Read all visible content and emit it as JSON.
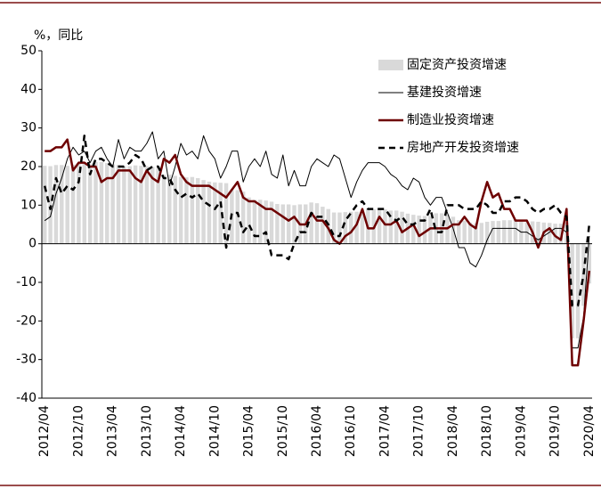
{
  "chart_data": {
    "type": "combo",
    "y_label": "%，同比",
    "categories": [
      "2012/04",
      null,
      null,
      null,
      null,
      null,
      "2012/10",
      null,
      null,
      null,
      null,
      null,
      "2013/04",
      null,
      null,
      null,
      null,
      null,
      "2013/10",
      null,
      null,
      null,
      null,
      null,
      "2014/04",
      null,
      null,
      null,
      null,
      null,
      "2014/10",
      null,
      null,
      null,
      null,
      null,
      "2015/04",
      null,
      null,
      null,
      null,
      null,
      "2015/10",
      null,
      null,
      null,
      null,
      null,
      "2016/04",
      null,
      null,
      null,
      null,
      null,
      "2016/10",
      null,
      null,
      null,
      null,
      null,
      "2017/04",
      null,
      null,
      null,
      null,
      null,
      "2017/10",
      null,
      null,
      null,
      null,
      null,
      "2018/04",
      null,
      null,
      null,
      null,
      null,
      "2018/10",
      null,
      null,
      null,
      null,
      null,
      "2019/04",
      null,
      null,
      null,
      null,
      null,
      "2019/10",
      null,
      null,
      null,
      null,
      null,
      "2020/04"
    ],
    "ylim": [
      -40,
      50
    ],
    "yticks": [
      -40,
      -30,
      -20,
      -10,
      0,
      10,
      20,
      30,
      40,
      50
    ],
    "series": [
      {
        "name": "固定资产投资增速",
        "kind": "bar",
        "color": "#d9d9d9",
        "values": [
          20.2,
          20.1,
          20.4,
          20.4,
          20.2,
          20.5,
          20.7,
          20.7,
          20.6,
          21.2,
          21.2,
          20.9,
          20.6,
          20.4,
          20.1,
          20.1,
          20.3,
          20.2,
          20.1,
          19.9,
          19.6,
          17.9,
          17.9,
          17.6,
          17.3,
          17.2,
          17.3,
          17.0,
          16.5,
          16.1,
          15.9,
          15.8,
          15.7,
          13.9,
          13.9,
          13.5,
          12.0,
          11.4,
          11.4,
          11.2,
          10.9,
          10.3,
          10.2,
          10.2,
          10.0,
          10.2,
          10.2,
          10.7,
          10.5,
          9.6,
          9.0,
          8.1,
          8.1,
          8.2,
          8.3,
          8.3,
          8.1,
          8.9,
          8.9,
          9.2,
          8.9,
          8.6,
          8.6,
          8.3,
          7.8,
          7.5,
          7.3,
          7.2,
          7.2,
          7.9,
          7.9,
          7.5,
          7.0,
          6.1,
          6.0,
          5.5,
          5.3,
          5.4,
          5.7,
          5.9,
          5.9,
          6.1,
          6.1,
          6.3,
          6.1,
          5.6,
          5.8,
          5.7,
          5.5,
          5.4,
          5.2,
          5.2,
          5.4,
          -24.5,
          -24.5,
          -16.1,
          -10.3
        ]
      },
      {
        "name": "基建投资增速",
        "kind": "line",
        "color": "#000000",
        "width": 1,
        "dashed": false,
        "values": [
          6,
          7,
          13,
          17,
          22,
          25,
          23,
          24,
          21,
          24,
          25,
          22,
          20,
          27,
          22,
          25,
          24,
          24,
          26,
          29,
          22,
          24,
          15,
          20,
          26,
          23,
          24,
          22,
          28,
          24,
          22,
          17,
          20,
          24,
          24,
          16,
          20,
          22,
          20,
          24,
          18,
          17,
          23,
          15,
          19,
          15,
          15,
          20,
          22,
          21,
          20,
          23,
          22,
          17,
          12,
          16,
          19,
          21,
          21,
          21,
          20,
          18,
          17,
          15,
          14,
          17,
          16,
          12,
          10,
          12,
          12,
          8,
          4,
          -1,
          -1,
          -5,
          -6,
          -3,
          1,
          4,
          4,
          4,
          4,
          4,
          3,
          3,
          2,
          1,
          2,
          3,
          4,
          4,
          3,
          -27,
          -27,
          -19,
          2
        ]
      },
      {
        "name": "制造业投资增速",
        "kind": "line",
        "color": "#6e0000",
        "width": 2.5,
        "dashed": false,
        "values": [
          24,
          24,
          25,
          25,
          27,
          19,
          21,
          21,
          20,
          20,
          16,
          17,
          17,
          19,
          19,
          19,
          17,
          16,
          19,
          17,
          16,
          22,
          21,
          23,
          18,
          16,
          15,
          15,
          15,
          15,
          14,
          13,
          12,
          14,
          16,
          12,
          11,
          11,
          10,
          9,
          9,
          8,
          7,
          6,
          7,
          5,
          5,
          8,
          6,
          6,
          4,
          1,
          0,
          2,
          3,
          5,
          9,
          4,
          4,
          7,
          5,
          5,
          6,
          3,
          4,
          5,
          2,
          3,
          4,
          4,
          4,
          4,
          5,
          5,
          7,
          5,
          4,
          11,
          16,
          12,
          13,
          9,
          9,
          6,
          6,
          6,
          3,
          -1,
          3,
          4,
          2,
          1,
          9,
          -31.5,
          -31.5,
          -20,
          -7
        ]
      },
      {
        "name": "房地产开发投资增速",
        "kind": "line",
        "color": "#000000",
        "width": 2.5,
        "dashed": true,
        "values": [
          15,
          9,
          17,
          13,
          15,
          14,
          16,
          28,
          18,
          22,
          22,
          21,
          20,
          20,
          20,
          21,
          23,
          22,
          19,
          20,
          20,
          17,
          17,
          14,
          12,
          13,
          12,
          13,
          11,
          10,
          9,
          11,
          -1,
          8,
          8,
          3,
          5,
          2,
          2,
          3,
          -3,
          -3,
          -3,
          -4,
          0,
          3,
          3,
          8,
          7,
          7,
          5,
          2,
          2,
          6,
          8,
          10,
          11,
          9,
          9,
          9,
          9,
          7,
          6,
          7,
          5,
          5,
          6,
          6,
          9,
          3,
          3,
          10,
          10,
          10,
          9,
          9,
          9,
          11,
          10,
          8,
          8,
          11,
          11,
          12,
          12,
          11,
          9,
          8,
          9,
          9,
          10,
          8,
          7,
          -16,
          -16,
          -8,
          5
        ]
      }
    ]
  }
}
